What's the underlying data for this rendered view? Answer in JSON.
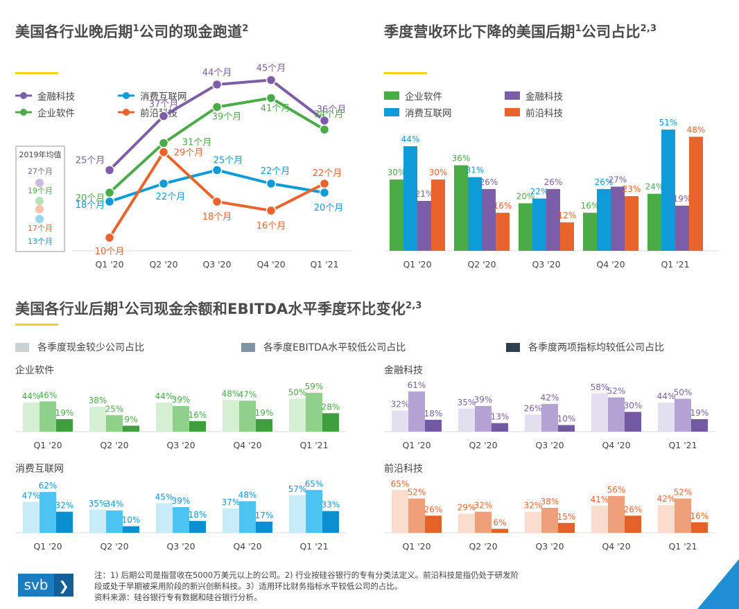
{
  "titles": {
    "t1": "美国各行业晚后期",
    "t1_sup1": "1",
    "t1_b": "公司的现金跑道",
    "t1_sup2": "2",
    "t2": "季度营收环比下降的美国后期",
    "t2_sup1": "1",
    "t2_b": "公司占比",
    "t2_sup2": "2,3",
    "t3": "美国各行业后期",
    "t3_sup1": "1",
    "t3_b": "公司现金余额和EBITDA水平季度环比变化",
    "t3_sup2": "2,3"
  },
  "colors": {
    "fintech": "#7b5ea7",
    "enterprise": "#4aab47",
    "consumer": "#0f9ad8",
    "frontier": "#e8642c",
    "accent_yellow": "#f2d21b",
    "axis": "#d9d9d9"
  },
  "legend1": [
    {
      "label": "金融科技",
      "color": "#7b5ea7"
    },
    {
      "label": "消费互联网",
      "color": "#0f9ad8"
    },
    {
      "label": "企业软件",
      "color": "#4aab47"
    },
    {
      "label": "前沿科技",
      "color": "#e8642c"
    }
  ],
  "legend2": [
    {
      "label": "企业软件",
      "color": "#4aab47"
    },
    {
      "label": "金融科技",
      "color": "#7b5ea7"
    },
    {
      "label": "消费互联网",
      "color": "#0f9ad8"
    },
    {
      "label": "前沿科技",
      "color": "#e8642c"
    }
  ],
  "legend3": [
    {
      "label": "各季度现金较少公司占比",
      "color": "#c9d0d6"
    },
    {
      "label": "各季度EBITDA水平较低公司占比",
      "color": "#7f95a7"
    },
    {
      "label": "各季度两项指标均较低公司占比",
      "color": "#2e3f4d"
    }
  ],
  "avg_box": {
    "title": "2019年均值",
    "values": [
      "27个月",
      "19个月",
      "17个月",
      "13个月"
    ]
  },
  "chart_data": [
    {
      "type": "line",
      "title": "美国各行业晚后期1公司的现金跑道2",
      "categories": [
        "Q1 '20",
        "Q2 '20",
        "Q3 '20",
        "Q4 '20",
        "Q1 '21"
      ],
      "unit": "个月",
      "series": [
        {
          "name": "金融科技",
          "values": [
            25,
            37,
            44,
            45,
            36
          ],
          "color": "#7b5ea7"
        },
        {
          "name": "企业软件",
          "values": [
            20,
            31,
            39,
            41,
            34
          ],
          "color": "#4aab47"
        },
        {
          "name": "消费互联网",
          "values": [
            18,
            22,
            25,
            22,
            20
          ],
          "color": "#0f9ad8"
        },
        {
          "name": "前沿科技",
          "values": [
            10,
            29,
            18,
            16,
            22
          ],
          "color": "#e8642c"
        }
      ],
      "reference_2019": [
        {
          "name": "金融科技",
          "value": 27
        },
        {
          "name": "企业软件",
          "value": 19
        },
        {
          "name": "前沿科技",
          "value": 17
        },
        {
          "name": "消费互联网",
          "value": 13
        }
      ],
      "ylim": [
        0,
        50
      ]
    },
    {
      "type": "bar",
      "title": "季度营收环比下降的美国后期1公司占比2,3",
      "categories": [
        "Q1 '20",
        "Q2 '20",
        "Q3 '20",
        "Q4 '20",
        "Q1 '21"
      ],
      "unit": "%",
      "series": [
        {
          "name": "企业软件",
          "values": [
            30,
            36,
            20,
            16,
            24
          ],
          "color": "#4aab47"
        },
        {
          "name": "消费互联网",
          "values": [
            44,
            31,
            22,
            26,
            51
          ],
          "color": "#0f9ad8"
        },
        {
          "name": "金融科技",
          "values": [
            21,
            26,
            26,
            27,
            19
          ],
          "color": "#7b5ea7"
        },
        {
          "name": "前沿科技",
          "values": [
            30,
            16,
            12,
            23,
            48
          ],
          "color": "#e8642c"
        }
      ],
      "ylim": [
        0,
        55
      ]
    },
    {
      "type": "bar",
      "title": "企业软件",
      "categories": [
        "Q1 '20",
        "Q2 '20",
        "Q3 '20",
        "Q4 '20",
        "Q1 '21"
      ],
      "unit": "%",
      "series": [
        {
          "name": "各季度现金较少公司占比",
          "values": [
            44,
            38,
            44,
            48,
            50
          ]
        },
        {
          "name": "各季度EBITDA水平较低公司占比",
          "values": [
            46,
            25,
            39,
            47,
            59
          ]
        },
        {
          "name": "各季度两项指标均较低公司占比",
          "values": [
            19,
            9,
            16,
            19,
            28
          ]
        }
      ],
      "colors": [
        "#d5efd3",
        "#8fd08a",
        "#3f9f3c"
      ],
      "label_color": "#4aab47"
    },
    {
      "type": "bar",
      "title": "金融科技",
      "categories": [
        "Q1 '20",
        "Q2 '20",
        "Q3 '20",
        "Q4 '20",
        "Q1 '21"
      ],
      "unit": "%",
      "series": [
        {
          "name": "各季度现金较少公司占比",
          "values": [
            32,
            35,
            26,
            58,
            44
          ]
        },
        {
          "name": "各季度EBITDA水平较低公司占比",
          "values": [
            61,
            39,
            42,
            52,
            50
          ]
        },
        {
          "name": "各季度两项指标均较低公司占比",
          "values": [
            18,
            13,
            10,
            30,
            19
          ]
        }
      ],
      "colors": [
        "#e4dff0",
        "#b3a2d3",
        "#7359a3"
      ],
      "label_color": "#7b5ea7"
    },
    {
      "type": "bar",
      "title": "消费互联网",
      "categories": [
        "Q1 '20",
        "Q2 '20",
        "Q3 '20",
        "Q4 '20",
        "Q1 '21"
      ],
      "unit": "%",
      "series": [
        {
          "name": "各季度现金较少公司占比",
          "values": [
            47,
            35,
            45,
            37,
            57
          ]
        },
        {
          "name": "各季度EBITDA水平较低公司占比",
          "values": [
            62,
            34,
            39,
            48,
            65
          ]
        },
        {
          "name": "各季度两项指标均较低公司占比",
          "values": [
            32,
            10,
            18,
            17,
            33
          ]
        }
      ],
      "colors": [
        "#c9ecfb",
        "#4cc3f1",
        "#0b8fd0"
      ],
      "label_color": "#0f9ad8"
    },
    {
      "type": "bar",
      "title": "前沿科技",
      "categories": [
        "Q1 '20",
        "Q2 '20",
        "Q3 '20",
        "Q4 '20",
        "Q1 '21"
      ],
      "unit": "%",
      "series": [
        {
          "name": "各季度现金较少公司占比",
          "values": [
            65,
            29,
            32,
            41,
            42
          ]
        },
        {
          "name": "各季度EBITDA水平较低公司占比",
          "values": [
            52,
            32,
            38,
            56,
            52
          ]
        },
        {
          "name": "各季度两项指标均较低公司占比",
          "values": [
            26,
            6,
            15,
            26,
            16
          ]
        }
      ],
      "colors": [
        "#fbdccd",
        "#efa07a",
        "#e5612a"
      ],
      "label_color": "#e8642c"
    }
  ],
  "footnote": {
    "line1": "注：1) 后期公司是指营收在5000万美元以上的公司。2) 行业按硅谷银行的专有分类法定义。前沿科技是指仍处于研发阶",
    "line2": "段或处于早期被采用阶段的新兴创新科技。3）适用环比财务指标水平较低公司的占比。",
    "line3": "资料来源：硅谷银行专有数据和硅谷银行分析。"
  },
  "logo": {
    "text": "svb",
    "chevron": "❯",
    "color": "#1a7dc2"
  }
}
